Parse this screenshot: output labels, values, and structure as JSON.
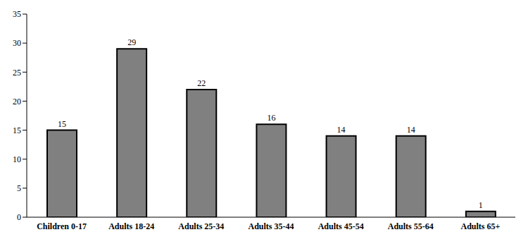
{
  "chart_data": {
    "type": "bar",
    "categories": [
      "Children 0-17",
      "Adults 18-24",
      "Adults 25-34",
      "Adults 35-44",
      "Adults 45-54",
      "Adults 55-64",
      "Adults 65+"
    ],
    "values": [
      15,
      29,
      22,
      16,
      14,
      14,
      1
    ],
    "color": "#808080",
    "ylim": [
      0,
      35
    ],
    "yticks": [
      0,
      5,
      10,
      15,
      20,
      25,
      30,
      35
    ],
    "grid": false,
    "data_labels": true
  }
}
